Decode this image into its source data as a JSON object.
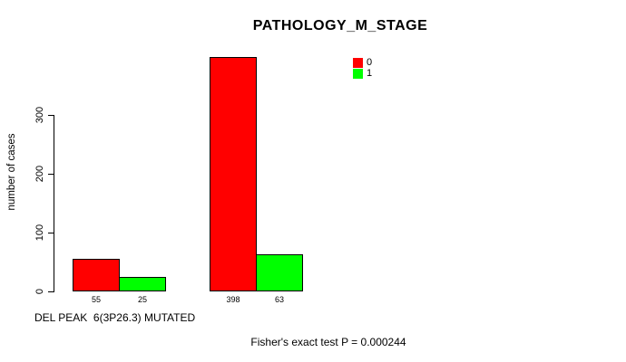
{
  "chart_data": {
    "type": "bar",
    "title": "PATHOLOGY_M_STAGE",
    "xlabel": "DEL PEAK  6(3P26.3) MUTATED",
    "ylabel": "number of cases",
    "footer_annotation": "Fisher's exact test P = 0.000244",
    "ylim": [
      0,
      400
    ],
    "yticks": [
      0,
      100,
      200,
      300
    ],
    "grid": false,
    "legend_position": "top-right-inside",
    "categories": [
      "",
      ""
    ],
    "series": [
      {
        "name": "0",
        "color": "#ff0000",
        "values": [
          55,
          398
        ]
      },
      {
        "name": "1",
        "color": "#00ff00",
        "values": [
          25,
          63
        ]
      }
    ],
    "bar_value_labels": [
      "55",
      "25",
      "398",
      "63"
    ],
    "bar_border_color": "#000000",
    "axis_color": "#000000",
    "background_color": "#ffffff"
  }
}
